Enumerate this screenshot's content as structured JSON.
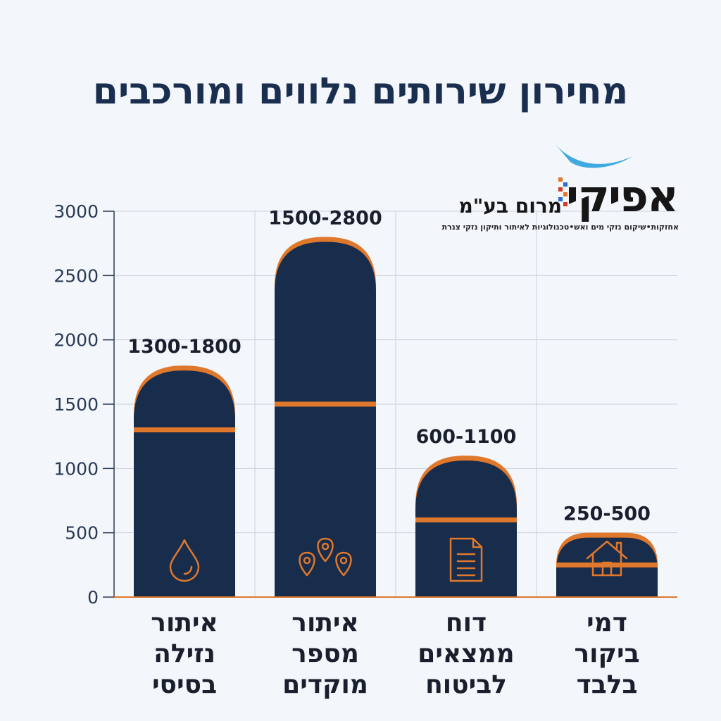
{
  "title": "מחירון שירותים נלווים ומורכבים",
  "logo": {
    "name": "אפיקי",
    "sub": "מרום בע\"מ",
    "tagline": "אחזקות•שיקום נזקי מים ואש•טכנולוגיות לאיתור ותיקון נזקי צנרת"
  },
  "colors": {
    "bar": "#182c4c",
    "accent": "#e0782c",
    "axis_text": "#2a3a55",
    "grid": "#c9d1dd"
  },
  "chart_data": {
    "type": "bar",
    "title": "מחירון שירותים נלווים ומורכבים",
    "ylim": [
      0,
      3000
    ],
    "yticks": [
      0,
      500,
      1000,
      1500,
      2000,
      2500,
      3000
    ],
    "grid": true,
    "categories": [
      [
        "איתור",
        "נזילה",
        "בסיסי"
      ],
      [
        "איתור",
        "מספר",
        "מוקדים"
      ],
      [
        "דוח",
        "ממצאים",
        "לביטוח"
      ],
      [
        "דמי",
        "ביקור",
        "בלבד"
      ]
    ],
    "series": [
      {
        "values_low": [
          1300,
          1500,
          600,
          250
        ],
        "values_high": [
          1800,
          2800,
          1100,
          500
        ]
      }
    ],
    "data_labels": [
      "1300-1800",
      "1500-2800",
      "600-1100",
      "250-500"
    ],
    "icons": [
      "water-drop-icon",
      "map-pins-icon",
      "document-icon",
      "house-icon"
    ]
  }
}
